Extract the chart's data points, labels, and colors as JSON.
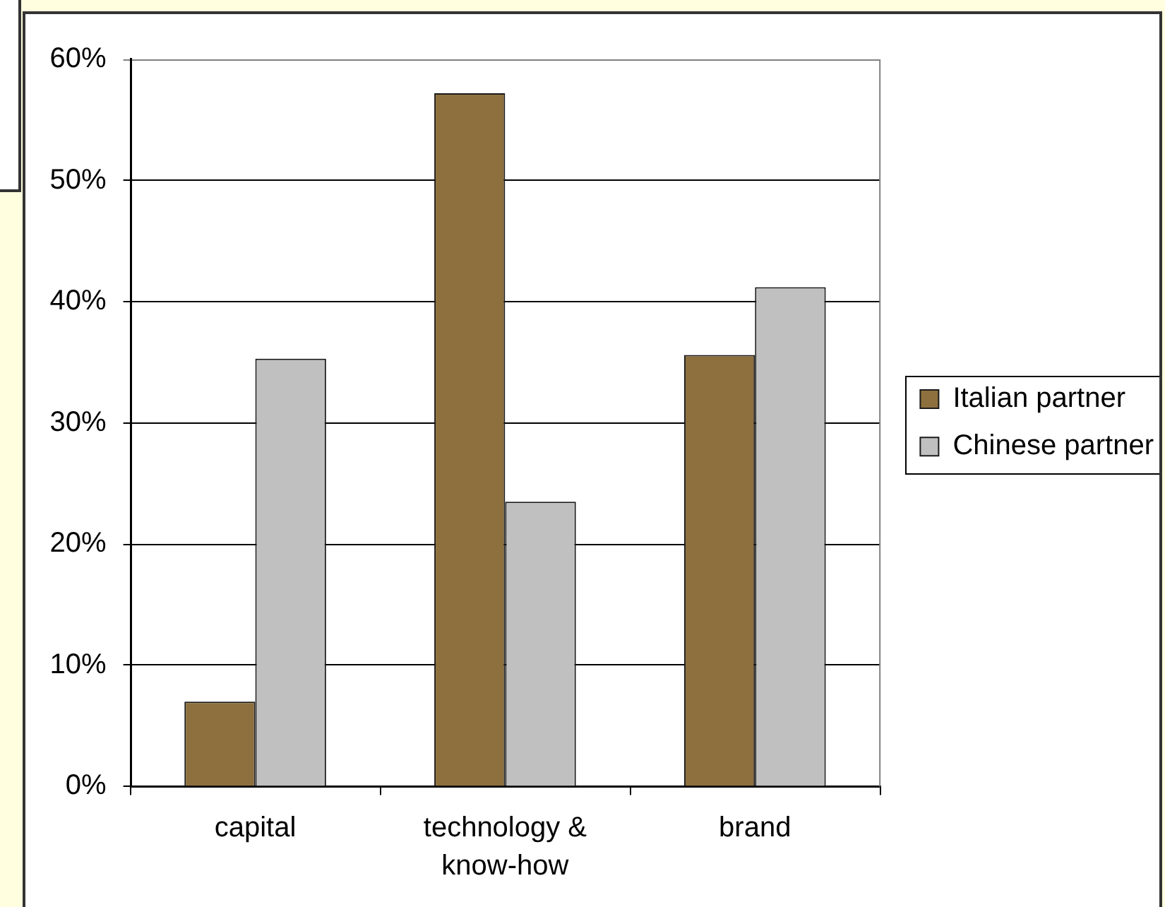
{
  "chart_data": {
    "type": "bar",
    "categories": [
      "capital",
      "technology & know-how",
      "brand"
    ],
    "series": [
      {
        "name": "Italian partner",
        "color": "#8e703e",
        "values": [
          7,
          57.2,
          35.6
        ]
      },
      {
        "name": "Chinese partner",
        "color": "#c0c0c0",
        "values": [
          35.3,
          23.5,
          41.2
        ]
      }
    ],
    "ylim": [
      0,
      60
    ],
    "yticks": [
      {
        "value": 0,
        "label": "0%"
      },
      {
        "value": 10,
        "label": "10%"
      },
      {
        "value": 20,
        "label": "20%"
      },
      {
        "value": 30,
        "label": "30%"
      },
      {
        "value": 40,
        "label": "40%"
      },
      {
        "value": 50,
        "label": "50%"
      },
      {
        "value": 60,
        "label": "60%"
      }
    ],
    "grid": "y",
    "legend": "right"
  }
}
